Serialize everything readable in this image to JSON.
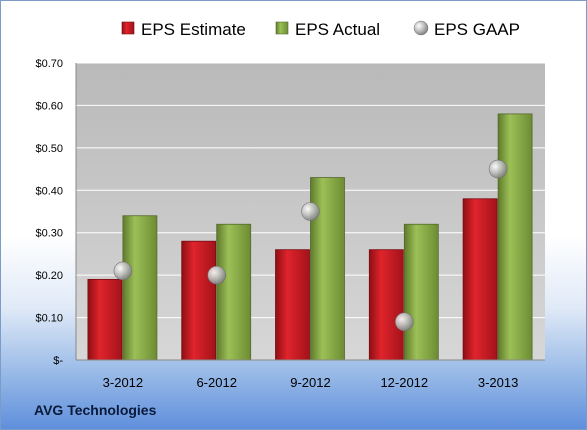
{
  "company": "AVG Technologies",
  "chart_data": {
    "type": "bar",
    "categories": [
      "3-2012",
      "6-2012",
      "9-2012",
      "12-2012",
      "3-2013"
    ],
    "series": [
      {
        "name": "EPS Estimate",
        "kind": "bar",
        "color": "#c0141c",
        "values": [
          0.19,
          0.28,
          0.26,
          0.26,
          0.38
        ]
      },
      {
        "name": "EPS Actual",
        "kind": "bar",
        "color": "#7fa040",
        "values": [
          0.34,
          0.32,
          0.43,
          0.32,
          0.58
        ]
      },
      {
        "name": "EPS GAAP",
        "kind": "scatter",
        "color": "#a9a9a9",
        "values": [
          0.21,
          0.2,
          0.35,
          0.09,
          0.45
        ]
      }
    ],
    "ylim": [
      0,
      0.7
    ],
    "yticks": [
      0,
      0.1,
      0.2,
      0.3,
      0.4,
      0.5,
      0.6,
      0.7
    ],
    "ytick_labels": [
      "$-",
      "$0.10",
      "$0.20",
      "$0.30",
      "$0.40",
      "$0.50",
      "$0.60",
      "$0.70"
    ],
    "grid": true,
    "legend_position": "top"
  }
}
